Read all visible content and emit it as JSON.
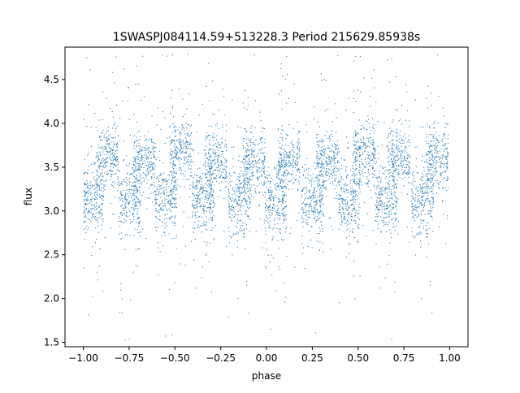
{
  "chart_data": {
    "type": "scatter",
    "title": "1SWASPJ084114.59+513228.3 Period 215629.85938s",
    "xlabel": "phase",
    "ylabel": "flux",
    "xlim": [
      -1.1,
      1.1
    ],
    "ylim": [
      1.45,
      4.87
    ],
    "xticks": [
      -1.0,
      -0.75,
      -0.5,
      -0.25,
      0.0,
      0.25,
      0.5,
      0.75,
      1.0
    ],
    "xtick_labels": [
      "−1.00",
      "−0.75",
      "−0.50",
      "−0.25",
      "0.00",
      "0.25",
      "0.50",
      "0.75",
      "1.00"
    ],
    "yticks": [
      1.5,
      2.0,
      2.5,
      3.0,
      3.5,
      4.0,
      4.5
    ],
    "ytick_labels": [
      "1.5",
      "2.0",
      "2.5",
      "3.0",
      "3.5",
      "4.0",
      "4.5"
    ],
    "grid": false,
    "legend": "none",
    "point_color": "#1f77b4",
    "phase_range": [
      -1.0,
      1.0
    ],
    "clusters": [
      {
        "phase": -0.95,
        "flux_center": 3.15,
        "flux_spread": 0.35
      },
      {
        "phase": -0.87,
        "flux_center": 3.6,
        "flux_spread": 0.3
      },
      {
        "phase": -0.75,
        "flux_center": 3.1,
        "flux_spread": 0.35
      },
      {
        "phase": -0.67,
        "flux_center": 3.55,
        "flux_spread": 0.3
      },
      {
        "phase": -0.55,
        "flux_center": 3.15,
        "flux_spread": 0.35
      },
      {
        "phase": -0.47,
        "flux_center": 3.65,
        "flux_spread": 0.3
      },
      {
        "phase": -0.35,
        "flux_center": 3.15,
        "flux_spread": 0.35
      },
      {
        "phase": -0.28,
        "flux_center": 3.55,
        "flux_spread": 0.3
      },
      {
        "phase": -0.15,
        "flux_center": 3.1,
        "flux_spread": 0.35
      },
      {
        "phase": -0.07,
        "flux_center": 3.55,
        "flux_spread": 0.3
      },
      {
        "phase": 0.05,
        "flux_center": 3.1,
        "flux_spread": 0.35
      },
      {
        "phase": 0.12,
        "flux_center": 3.6,
        "flux_spread": 0.3
      },
      {
        "phase": 0.25,
        "flux_center": 3.1,
        "flux_spread": 0.35
      },
      {
        "phase": 0.33,
        "flux_center": 3.55,
        "flux_spread": 0.3
      },
      {
        "phase": 0.45,
        "flux_center": 3.15,
        "flux_spread": 0.35
      },
      {
        "phase": 0.53,
        "flux_center": 3.65,
        "flux_spread": 0.3
      },
      {
        "phase": 0.65,
        "flux_center": 3.15,
        "flux_spread": 0.35
      },
      {
        "phase": 0.72,
        "flux_center": 3.6,
        "flux_spread": 0.3
      },
      {
        "phase": 0.85,
        "flux_center": 3.1,
        "flux_spread": 0.35
      },
      {
        "phase": 0.93,
        "flux_center": 3.6,
        "flux_spread": 0.3
      }
    ]
  }
}
